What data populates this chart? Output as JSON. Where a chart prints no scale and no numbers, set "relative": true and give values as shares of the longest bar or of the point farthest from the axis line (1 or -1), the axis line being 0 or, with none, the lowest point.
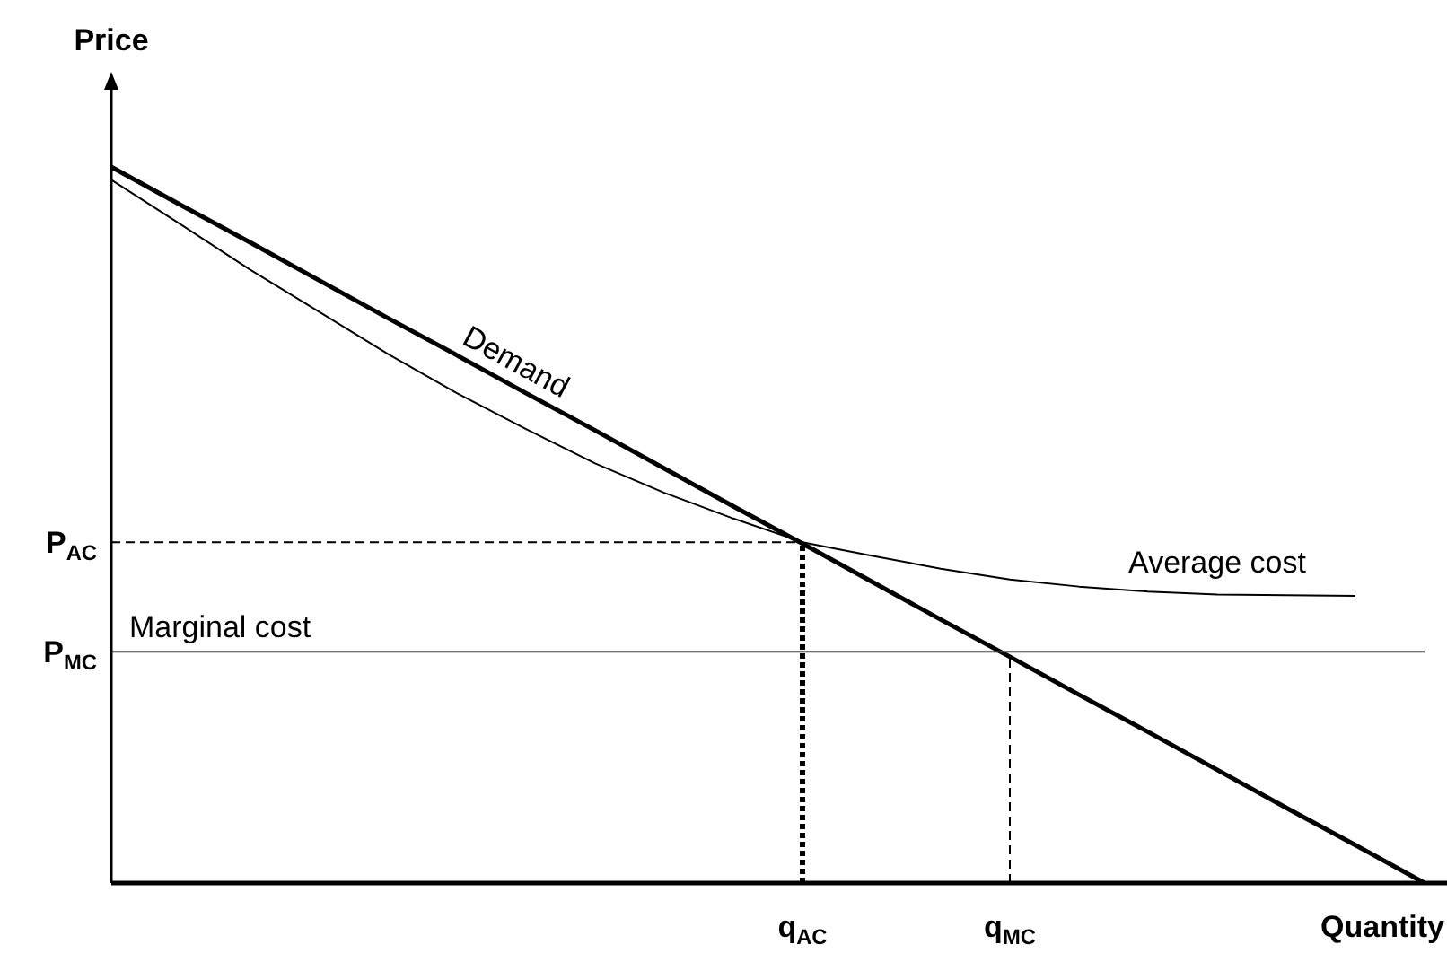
{
  "chart_data": {
    "type": "line",
    "relative": true,
    "xlabel": "Quantity",
    "ylabel": "Price",
    "categories": [
      null,
      null,
      null,
      null,
      null,
      null,
      null,
      null,
      null,
      null,
      "q$_{AC}$",
      null,
      null,
      "q$_{MC}$",
      null,
      null,
      null,
      null,
      null,
      null
    ],
    "annotations": [
      "P$_{AC}$",
      "P$_{MC}$"
    ],
    "series": [
      {
        "name": "Demand",
        "color": "#000000",
        "line_style": "solid",
        "values": [
          1,
          0.947,
          0.895,
          0.842,
          0.789,
          0.737,
          0.684,
          0.632,
          0.579,
          0.526,
          0.474,
          0.421,
          0.368,
          0.316,
          0.263,
          0.211,
          0.158,
          0.105,
          0.053,
          0
        ]
      },
      {
        "name": "Average cost",
        "color": "#000000",
        "line_style": "solid",
        "values": [
          0.982,
          0.92,
          0.857,
          0.798,
          0.739,
          0.684,
          0.634,
          0.586,
          0.545,
          0.509,
          0.476,
          0.457,
          0.439,
          0.424,
          0.414,
          0.407,
          0.403,
          0.402,
          0.401,
          null
        ]
      },
      {
        "name": "Marginal cost",
        "color": "#444444",
        "line_style": "solid",
        "values": [
          0.323,
          0.323,
          0.323,
          0.323,
          0.323,
          0.323,
          0.323,
          0.323,
          0.323,
          0.323,
          0.323,
          0.323,
          0.323,
          0.323,
          0.323,
          0.323,
          0.323,
          0.323,
          0.323,
          0.323
        ]
      },
      {
        "color": "#000000",
        "line_style": "dashed",
        "values": [
          0.476,
          0.476,
          0.476,
          0.476,
          0.476,
          0.476,
          0.476,
          0.476,
          0.476,
          0.476,
          0.476,
          null,
          null,
          null,
          null,
          null,
          null,
          null,
          null,
          null
        ]
      },
      {
        "color": "#000000",
        "line_style": "dotted",
        "x": [
          "q$_{AC}$",
          "q$_{AC}$"
        ],
        "values": [
          0,
          0.476
        ]
      },
      {
        "color": "#000000",
        "line_style": "dashed",
        "x": [
          "q$_{MC}$",
          "q$_{MC}$"
        ],
        "values": [
          0,
          0.316
        ]
      }
    ]
  }
}
